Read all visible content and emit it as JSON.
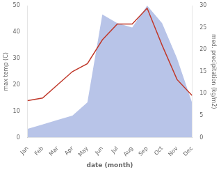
{
  "chart_data": {
    "type": "line",
    "xlabel": "date (month)",
    "ylabel": "max temp (C)",
    "y2label": "med. precipitation (kg/m2)",
    "categories": [
      "Jan",
      "Feb",
      "Mar",
      "Apr",
      "May",
      "Jun",
      "Jul",
      "Aug",
      "Sep",
      "Oct",
      "Nov",
      "Dec"
    ],
    "series": [
      {
        "type": "line",
        "color": "#c0392b",
        "values": [
          14,
          15,
          20,
          25,
          28,
          37,
          43,
          43,
          49,
          35,
          22,
          16
        ]
      },
      {
        "type": "area",
        "axis": "y2",
        "color": "#b8c4e8",
        "values": [
          2,
          3,
          4,
          5,
          8,
          28,
          26,
          25,
          30,
          26,
          18,
          8
        ]
      }
    ],
    "ylim": [
      0,
      50
    ],
    "yticks": [
      0,
      10,
      20,
      30,
      40,
      50
    ],
    "y2lim": [
      0,
      30
    ],
    "y2ticks": [
      0,
      5,
      10,
      15,
      20,
      25,
      30
    ],
    "grid": false
  }
}
